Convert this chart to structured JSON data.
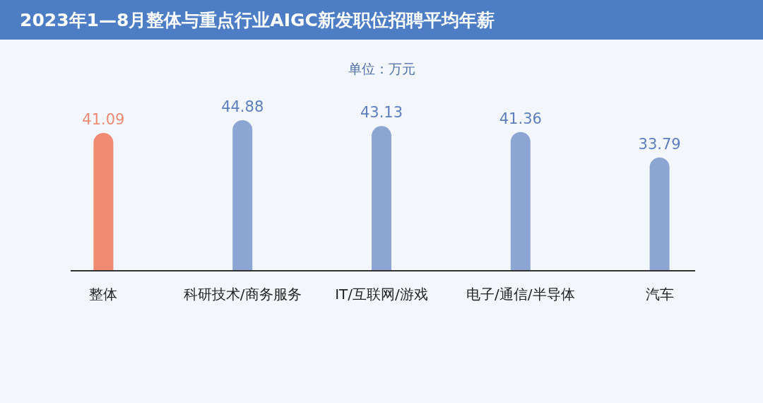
{
  "chart_data": {
    "type": "bar",
    "title": "2023年1—8月整体与重点行业AIGC新发职位招聘平均年薪",
    "subtitle": "单位：万元",
    "categories": [
      "整体",
      "科研技术/商务服务",
      "IT/互联网/游戏",
      "电子/通信/半导体",
      "汽车"
    ],
    "values": [
      41.09,
      44.88,
      43.13,
      41.36,
      33.79
    ],
    "colors": [
      "#f08b72",
      "#8ca5d3",
      "#8ca5d3",
      "#8ca5d3",
      "#8ca5d3"
    ],
    "data_labels": true
  }
}
